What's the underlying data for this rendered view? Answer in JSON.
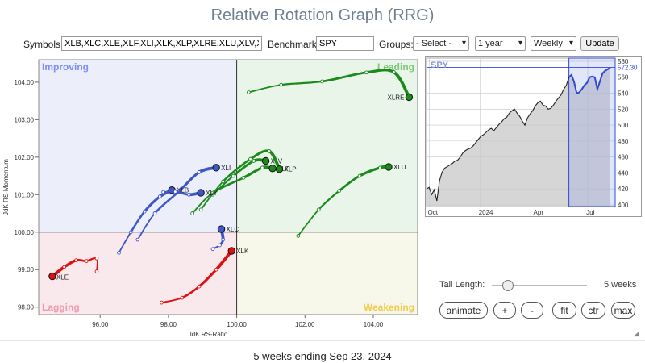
{
  "page": {
    "title": "Relative Rotation Graph (RRG)",
    "footer": "5 weeks ending Sep 23, 2024"
  },
  "controls": {
    "symbols_label": "Symbols:",
    "symbols_value": "XLB,XLC,XLE,XLF,XLI,XLK,XLP,XLRE,XLU,XLV,XL",
    "benchmark_label": "Benchmark:",
    "benchmark_value": "SPY",
    "groups_label": "Groups:",
    "groups_value": "- Select -",
    "period_value": "1 year",
    "frequency_value": "Weekly",
    "update_label": "Update"
  },
  "rrg": {
    "quadrants": [
      "Improving",
      "Leading",
      "Weakening",
      "Lagging"
    ],
    "quadrant_colors": {
      "Improving": "#eceefa",
      "Leading": "#e8f5e8",
      "Weakening": "#f7f7ea",
      "Lagging": "#fae9ec"
    },
    "label_colors": {
      "Improving": "#7d8ff0",
      "Leading": "#7cc77c",
      "Weakening": "#f2cb4c",
      "Lagging": "#f09ab0"
    },
    "xlabel": "JdK RS-Ratio",
    "ylabel": "JdK RS-Momentum",
    "xlim": [
      94.2,
      105.3
    ],
    "ylim": [
      97.8,
      104.6
    ],
    "x_ticks": [
      "96.00",
      "98.00",
      "100.00",
      "102.00",
      "104.00"
    ],
    "x_tick_values": [
      96,
      98,
      100,
      102,
      104
    ],
    "y_ticks": [
      "98.00",
      "99.00",
      "100.00",
      "101.00",
      "102.00",
      "103.00",
      "104.00"
    ],
    "y_tick_values": [
      98,
      99,
      100,
      101,
      102,
      103,
      104
    ]
  },
  "chart_data": {
    "type": "scatter",
    "series": [
      {
        "name": "XLRE",
        "color": "#1a8a1a",
        "x": [
          100.35,
          101.3,
          102.5,
          103.8,
          104.6,
          105.05
        ],
        "y": [
          103.73,
          103.93,
          104.02,
          104.26,
          104.27,
          103.6
        ]
      },
      {
        "name": "XLU",
        "color": "#1a8a1a",
        "x": [
          101.8,
          102.4,
          103.0,
          103.6,
          104.2,
          104.45
        ],
        "y": [
          99.9,
          100.6,
          101.1,
          101.5,
          101.72,
          101.74
        ]
      },
      {
        "name": "XLV",
        "color": "#1a8a1a",
        "x": [
          99.3,
          99.9,
          100.5,
          100.85
        ],
        "y": [
          101.0,
          101.5,
          101.9,
          101.9
        ]
      },
      {
        "name": "XLF",
        "color": "#1a8a1a",
        "x": [
          98.7,
          99.3,
          100.2,
          100.75,
          101.05
        ],
        "y": [
          100.5,
          101.05,
          101.45,
          101.72,
          101.7
        ]
      },
      {
        "name": "XLP",
        "color": "#1a8a1a",
        "x": [
          98.95,
          99.6,
          100.4,
          100.95,
          101.25
        ],
        "y": [
          100.6,
          101.35,
          101.95,
          102.16,
          101.68
        ]
      },
      {
        "name": "XLI",
        "color": "#3e57c7",
        "x": [
          97.1,
          97.6,
          98.3,
          98.9,
          99.4
        ],
        "y": [
          99.8,
          100.5,
          101.08,
          101.6,
          101.72
        ]
      },
      {
        "name": "XLB",
        "color": "#3e57c7",
        "x": [
          96.55,
          96.9,
          97.3,
          97.75,
          98.1
        ],
        "y": [
          99.45,
          100.0,
          100.55,
          100.95,
          101.12
        ]
      },
      {
        "name": "XLY",
        "color": "#3e57c7",
        "x": [
          97.85,
          98.2,
          98.6,
          98.95
        ],
        "y": [
          101.07,
          101.08,
          101.0,
          101.05
        ]
      },
      {
        "name": "XLC",
        "color": "#3e57c7",
        "x": [
          99.3,
          99.5,
          99.6,
          99.55
        ],
        "y": [
          99.55,
          99.65,
          99.8,
          100.08
        ]
      },
      {
        "name": "XLE",
        "color": "#e01010",
        "x": [
          95.9,
          95.9,
          95.6,
          95.3,
          94.95,
          94.6
        ],
        "y": [
          98.95,
          99.3,
          99.23,
          99.25,
          99.07,
          98.82
        ]
      },
      {
        "name": "XLK",
        "color": "#e01010",
        "x": [
          97.8,
          98.4,
          98.9,
          99.4,
          99.85
        ],
        "y": [
          98.12,
          98.25,
          98.55,
          99.0,
          99.5
        ]
      }
    ],
    "label_texts": {
      "XLRE": "XLRE",
      "XLU": "XLU",
      "XLV": "XLV",
      "XLF": "XLF",
      "XLP": "XLP",
      "XLI": "XLI",
      "XLB": "XLB",
      "XLY": "XLY",
      "XLC": "XLC",
      "XLE": "XLE",
      "XLK": "XLK"
    }
  },
  "spy_chart": {
    "symbol": "SPY",
    "current_value": "572.30",
    "current_value_num": 572.3,
    "y_ticks": [
      "580",
      "560",
      "540",
      "520",
      "500",
      "480",
      "460",
      "440",
      "420",
      "400"
    ],
    "y_tick_values": [
      580,
      560,
      540,
      520,
      500,
      480,
      460,
      440,
      420,
      400
    ],
    "ylim": [
      398,
      584
    ],
    "x_ticks": [
      "Oct",
      "2024",
      "Apr",
      "Jul"
    ],
    "x_tick_positions": [
      0.015,
      0.285,
      0.575,
      0.855
    ],
    "values": [
      420,
      422,
      413,
      419,
      405,
      430,
      441,
      446,
      448,
      450,
      452,
      455,
      456,
      460,
      465,
      468,
      470,
      471,
      474,
      478,
      482,
      486,
      488,
      491,
      494,
      496,
      493,
      497,
      501,
      504,
      508,
      510,
      515,
      518,
      520,
      515,
      511,
      505,
      500,
      509,
      514,
      518,
      524,
      528,
      530,
      525,
      524,
      520,
      521,
      525,
      530,
      534,
      538,
      545,
      550,
      560,
      563,
      554,
      540,
      541,
      545,
      550,
      553,
      560,
      561,
      560,
      545,
      555,
      565,
      568,
      570,
      572.3
    ],
    "highlight_start": 0.77,
    "line_color": "#222222",
    "highlight_color": "#3048d8",
    "fill_color": "#d6d6d6"
  },
  "tail": {
    "label": "Tail Length:",
    "value": "5 weeks"
  },
  "buttons": {
    "animate": "animate",
    "zoom_in": "+",
    "zoom_out": "-",
    "fit": "fit",
    "center": "ctr",
    "max": "max"
  }
}
